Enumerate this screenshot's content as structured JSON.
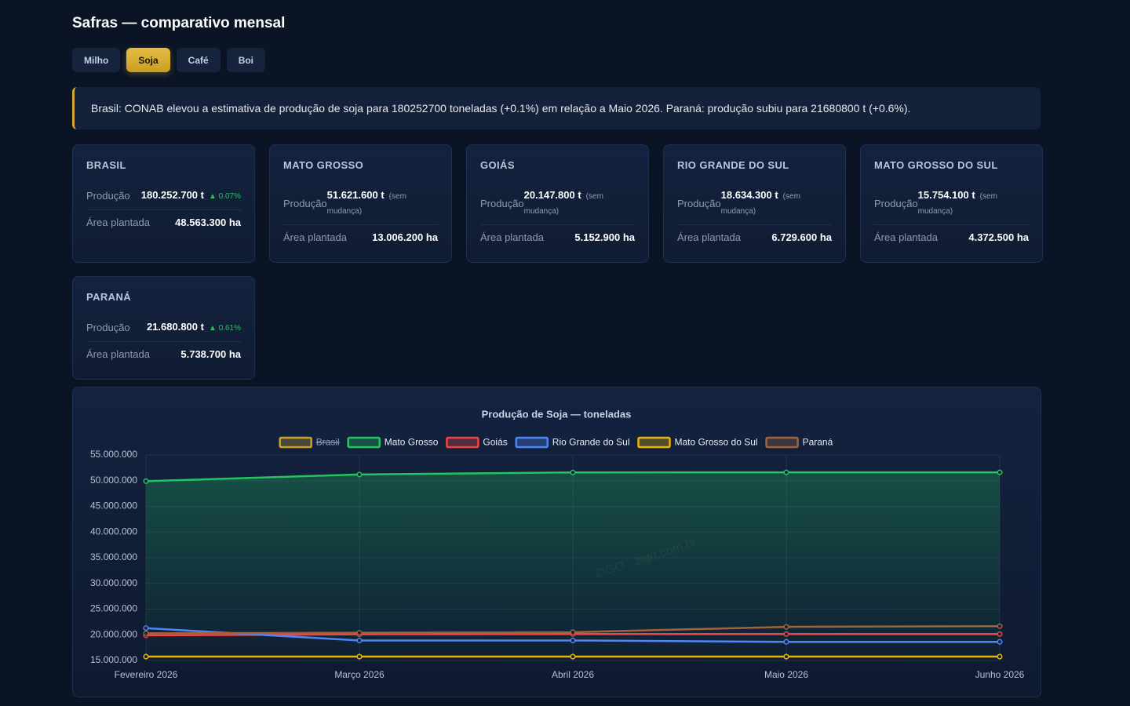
{
  "header": {
    "title": "Safras — comparativo mensal"
  },
  "tabs": [
    {
      "label": "Milho",
      "active": false
    },
    {
      "label": "Soja",
      "active": true
    },
    {
      "label": "Café",
      "active": false
    },
    {
      "label": "Boi",
      "active": false
    }
  ],
  "alert": {
    "text": "Brasil: CONAB elevou a estimativa de produção de soja para 180252700 toneladas (+0.1%) em relação a Maio 2026. Paraná: produção subiu para 21680800 t (+0.6%)."
  },
  "cards": [
    {
      "name": "BRASIL",
      "production_label": "Produção",
      "production": "180.252.700 t",
      "change": "▲ 0.07%",
      "change_type": "up",
      "area_label": "Área plantada",
      "area": "48.563.300 ha"
    },
    {
      "name": "MATO GROSSO",
      "production_label": "Produção",
      "production": "51.621.600 t",
      "change": "(sem mudança)",
      "change_type": "none",
      "area_label": "Área plantada",
      "area": "13.006.200 ha"
    },
    {
      "name": "GOIÁS",
      "production_label": "Produção",
      "production": "20.147.800 t",
      "change": "(sem mudança)",
      "change_type": "none",
      "area_label": "Área plantada",
      "area": "5.152.900 ha"
    },
    {
      "name": "RIO GRANDE DO SUL",
      "production_label": "Produção",
      "production": "18.634.300 t",
      "change": "(sem mudança)",
      "change_type": "none",
      "area_label": "Área plantada",
      "area": "6.729.600 ha"
    },
    {
      "name": "MATO GROSSO DO SUL",
      "production_label": "Produção",
      "production": "15.754.100 t",
      "change": "(sem mudança)",
      "change_type": "none",
      "area_label": "Área plantada",
      "area": "4.372.500 ha"
    },
    {
      "name": "PARANÁ",
      "production_label": "Produção",
      "production": "21.680.800 t",
      "change": "▲ 0.61%",
      "change_type": "up",
      "area_label": "Área plantada",
      "area": "5.738.700 ha"
    }
  ],
  "chart_data": {
    "type": "line",
    "title": "Produção de Soja — toneladas",
    "watermark": "ZIGO · zigo.com.br",
    "categories": [
      "Fevereiro 2026",
      "Março 2026",
      "Abril 2026",
      "Maio 2026",
      "Junho 2026"
    ],
    "series": [
      {
        "name": "Brasil",
        "color": "#c9a227",
        "hidden": true
      },
      {
        "name": "Mato Grosso",
        "color": "#22c55e",
        "fill": true,
        "values": [
          49900000,
          51200000,
          51600000,
          51621600,
          51621600
        ]
      },
      {
        "name": "Goiás",
        "color": "#ef4444",
        "values": [
          19900000,
          20100000,
          20150000,
          20147800,
          20147800
        ]
      },
      {
        "name": "Rio Grande do Sul",
        "color": "#4f86f7",
        "values": [
          21300000,
          18900000,
          18900000,
          18634300,
          18634300
        ]
      },
      {
        "name": "Mato Grosso do Sul",
        "color": "#eab308",
        "values": [
          15754100,
          15754100,
          15754100,
          15754100,
          15754100
        ]
      },
      {
        "name": "Paraná",
        "color": "#a0643c",
        "values": [
          20300000,
          20400000,
          20500000,
          21549400,
          21680800
        ]
      }
    ],
    "ylim": [
      15000000,
      55000000
    ],
    "yticks": [
      {
        "value": 15000000,
        "label": "15.000.000"
      },
      {
        "value": 20000000,
        "label": "20.000.000"
      },
      {
        "value": 25000000,
        "label": "25.000.000"
      },
      {
        "value": 30000000,
        "label": "30.000.000"
      },
      {
        "value": 35000000,
        "label": "35.000.000"
      },
      {
        "value": 40000000,
        "label": "40.000.000"
      },
      {
        "value": 45000000,
        "label": "45.000.000"
      },
      {
        "value": 50000000,
        "label": "50.000.000"
      },
      {
        "value": 55000000,
        "label": "55.000.000"
      }
    ],
    "grid": true,
    "legend": "top"
  }
}
